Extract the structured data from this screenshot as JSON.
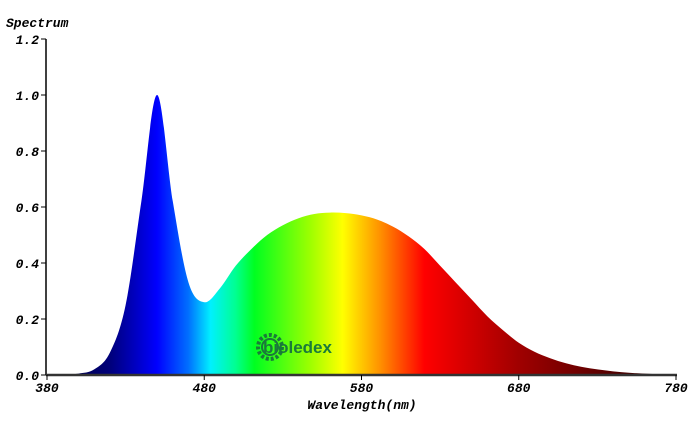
{
  "chart_data": {
    "type": "area",
    "title": "",
    "xlabel": "Wavelength(nm)",
    "ylabel": "Spectrum",
    "xlim": [
      380,
      780
    ],
    "ylim": [
      0,
      1.2
    ],
    "x_ticks": [
      "380",
      "480",
      "580",
      "680",
      "780"
    ],
    "y_ticks": [
      "0.0",
      "0.2",
      "0.4",
      "0.6",
      "0.8",
      "1.0",
      "1.2"
    ],
    "grid": false,
    "fill": "wavelength-colored gradient",
    "x": [
      380,
      390,
      400,
      410,
      420,
      430,
      440,
      450,
      460,
      470,
      480,
      490,
      500,
      510,
      520,
      530,
      540,
      550,
      560,
      570,
      580,
      590,
      600,
      610,
      620,
      630,
      640,
      650,
      660,
      670,
      680,
      690,
      700,
      710,
      720,
      730,
      740,
      750,
      760,
      770,
      780
    ],
    "values": [
      0,
      0.001,
      0.005,
      0.02,
      0.08,
      0.25,
      0.62,
      1.0,
      0.62,
      0.33,
      0.26,
      0.31,
      0.39,
      0.45,
      0.5,
      0.535,
      0.56,
      0.575,
      0.58,
      0.578,
      0.57,
      0.555,
      0.53,
      0.495,
      0.45,
      0.39,
      0.33,
      0.27,
      0.21,
      0.16,
      0.115,
      0.083,
      0.06,
      0.042,
      0.029,
      0.02,
      0.013,
      0.008,
      0.005,
      0.003,
      0.002
    ]
  },
  "watermark": {
    "text": "bioledex",
    "color": "#1a7a3a"
  }
}
